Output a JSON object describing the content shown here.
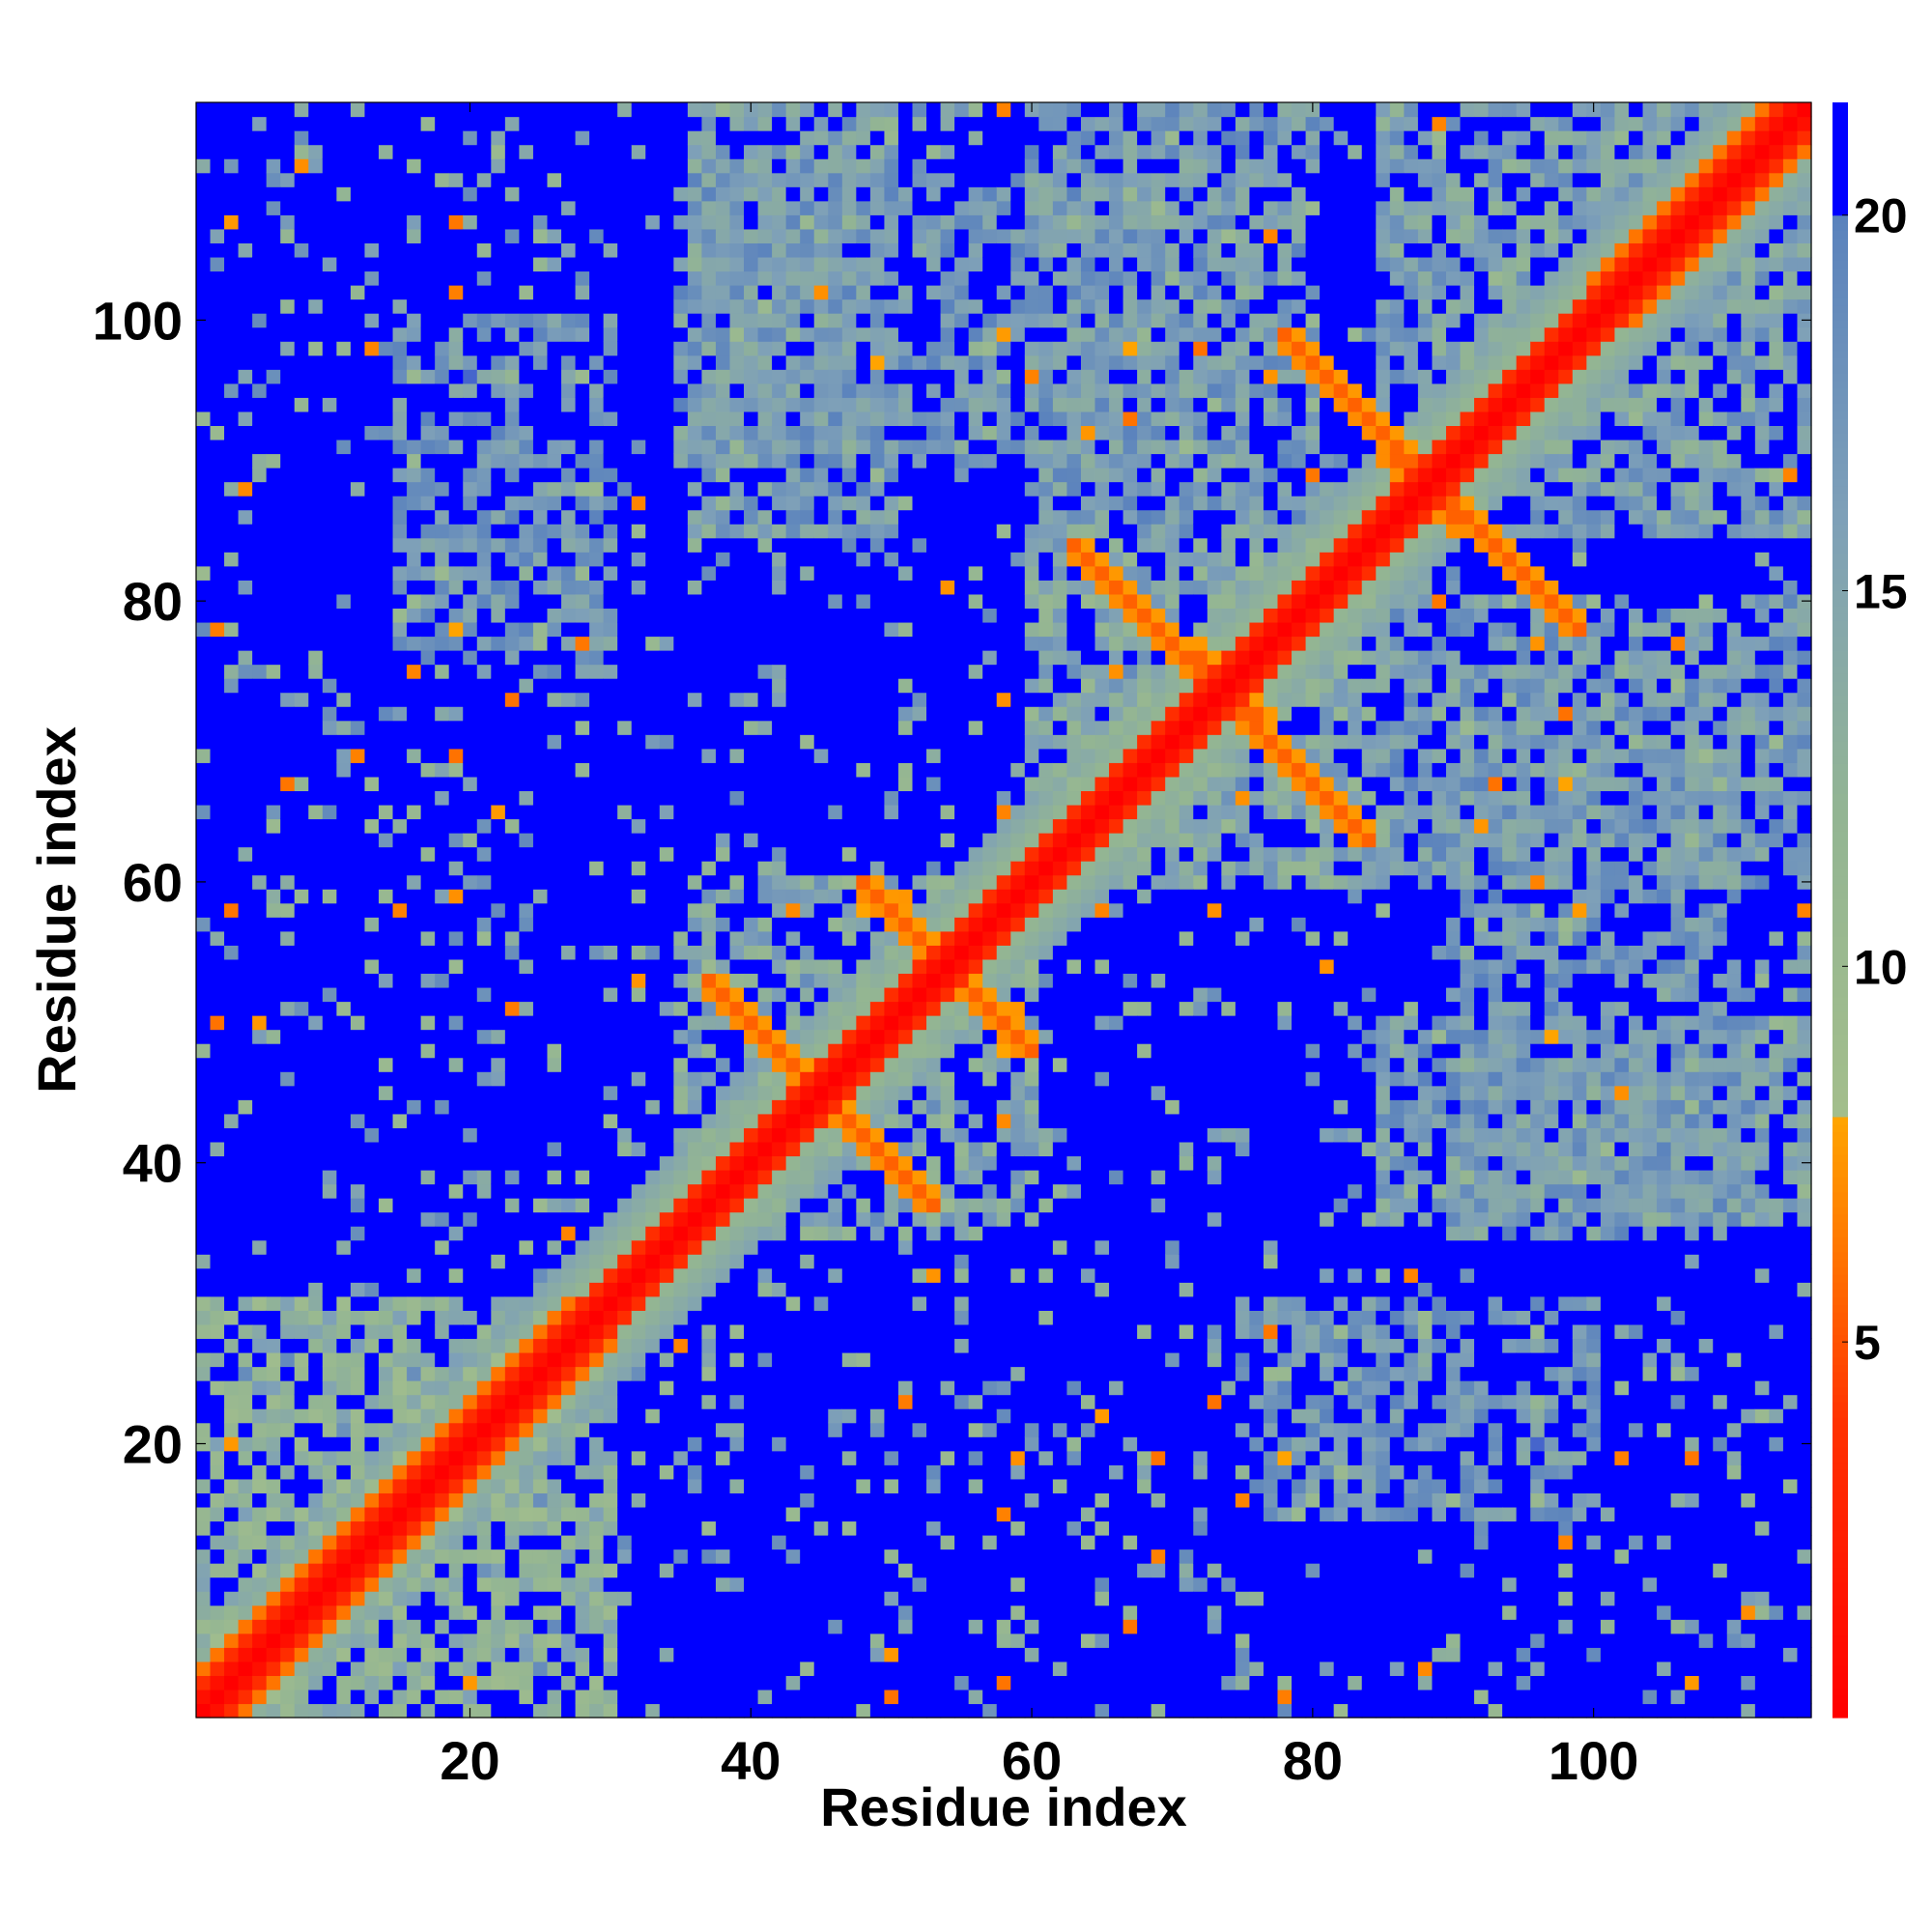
{
  "chart_data": {
    "type": "heatmap",
    "title": "",
    "xlabel": "Residue index",
    "ylabel": "Residue index",
    "n_residues": 115,
    "xlim": [
      0.5,
      115.5
    ],
    "ylim": [
      0.5,
      115.5
    ],
    "x_ticks": [
      20,
      40,
      60,
      80,
      100
    ],
    "y_ticks": [
      20,
      40,
      60,
      80,
      100
    ],
    "colorbar": {
      "range": [
        0,
        21.5
      ],
      "ticks": [
        5,
        10,
        15,
        20
      ],
      "stops": [
        {
          "value": 0,
          "color": "#ff0000"
        },
        {
          "value": 4,
          "color": "#ff3300"
        },
        {
          "value": 6,
          "color": "#ff7000"
        },
        {
          "value": 8,
          "color": "#ffa500"
        },
        {
          "value": 8.01,
          "color": "#a3be8c"
        },
        {
          "value": 12,
          "color": "#93b593"
        },
        {
          "value": 16,
          "color": "#7ea0b8"
        },
        {
          "value": 20,
          "color": "#5a82bd"
        },
        {
          "value": 20.01,
          "color": "#0000ff"
        },
        {
          "value": 21.5,
          "color": "#0000ff"
        }
      ]
    },
    "grid": false,
    "diagonal_value": 0,
    "background_value": 21.5,
    "helix_segments": [
      [
        1,
        30
      ],
      [
        100,
        115
      ]
    ],
    "hairpin_contacts": [
      {
        "start_i": 37,
        "start_j": 53,
        "length": 9,
        "value": 5.5
      },
      {
        "start_i": 48,
        "start_j": 60,
        "length": 6,
        "value": 5.5
      },
      {
        "start_i": 63,
        "start_j": 84,
        "length": 11,
        "value": 5.5
      },
      {
        "start_i": 72,
        "start_j": 76,
        "length": 5,
        "value": 5.5
      },
      {
        "start_i": 78,
        "start_j": 99,
        "length": 10,
        "value": 5.5
      },
      {
        "start_i": 87,
        "start_j": 89,
        "length": 4,
        "value": 5.5
      }
    ],
    "domain_blocks": [
      {
        "i": [
          1,
          30
        ],
        "j": [
          1,
          30
        ],
        "level": 12
      },
      {
        "i": [
          35,
          60
        ],
        "j": [
          35,
          60
        ],
        "level": 14
      },
      {
        "i": [
          60,
          85
        ],
        "j": [
          60,
          85
        ],
        "level": 14
      },
      {
        "i": [
          85,
          115
        ],
        "j": [
          85,
          115
        ],
        "level": 15
      },
      {
        "i": [
          36,
          50
        ],
        "j": [
          85,
          115
        ],
        "level": 16
      },
      {
        "i": [
          60,
          80
        ],
        "j": [
          85,
          115
        ],
        "level": 16
      },
      {
        "i": [
          15,
          30
        ],
        "j": [
          75,
          100
        ],
        "level": 17
      },
      {
        "i": [
          90,
          110
        ],
        "j": [
          35,
          75
        ],
        "level": 17
      }
    ],
    "noise_seed": 7
  }
}
